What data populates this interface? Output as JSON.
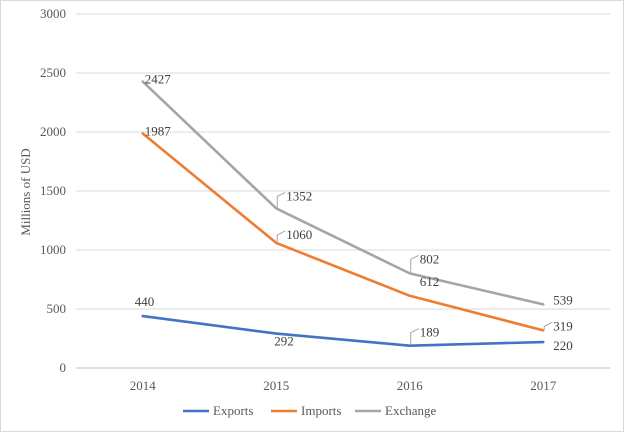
{
  "chart_data": {
    "type": "line",
    "categories": [
      "2014",
      "2015",
      "2016",
      "2017"
    ],
    "series": [
      {
        "name": "Exports",
        "values": [
          440,
          292,
          189,
          220
        ],
        "color": "#4472C4"
      },
      {
        "name": "Imports",
        "values": [
          1987,
          1060,
          612,
          319
        ],
        "color": "#ED7D31"
      },
      {
        "name": "Exchange",
        "values": [
          2427,
          1352,
          802,
          539
        ],
        "color": "#A5A5A5"
      }
    ],
    "ylabel": "Millions of USD",
    "xlabel": "",
    "ylim": [
      0,
      3000
    ],
    "yticks": [
      "0",
      "500",
      "1000",
      "1500",
      "2000",
      "2500",
      "3000"
    ],
    "grid": true,
    "legend": "bottom"
  }
}
